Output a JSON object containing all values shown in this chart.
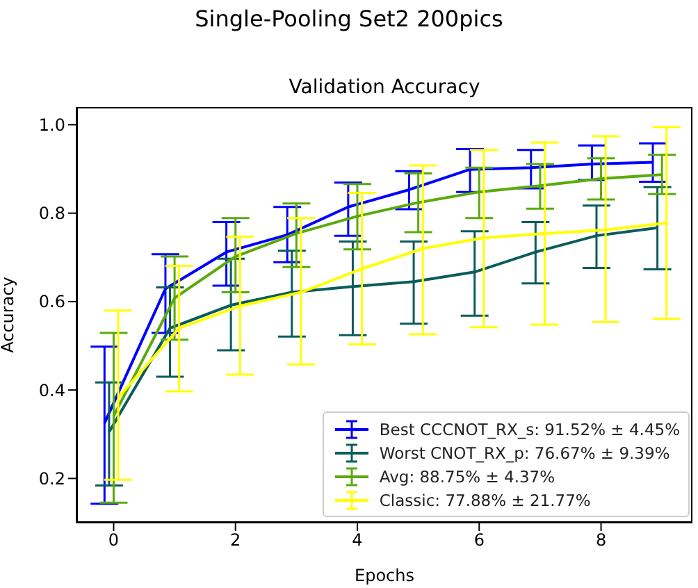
{
  "chart_data": {
    "type": "line",
    "title": "Single-Pooling Set2 200pics",
    "subtitle": "Validation Accuracy",
    "xlabel": "Epochs",
    "ylabel": "Accuracy",
    "xlim": [
      -0.61,
      9.5
    ],
    "xticks": [
      0,
      2,
      4,
      6,
      8
    ],
    "ylim": [
      0.1,
      1.04
    ],
    "yticks": [
      {
        "value": 0.2,
        "label": "0.2"
      },
      {
        "value": 0.4,
        "label": "0.4"
      },
      {
        "value": 0.6,
        "label": "0.6"
      },
      {
        "value": 0.8,
        "label": "0.8"
      },
      {
        "value": 1,
        "label": "1.0"
      }
    ],
    "grid": false,
    "legend": "bottom right",
    "marker": "none",
    "line_style": "solid",
    "series": [
      {
        "name": "Best CCCNOT_RX_s: 91.52% ± 4.45%",
        "color": "#0000ff",
        "x": [
          -0.15,
          0.85,
          1.85,
          2.85,
          3.85,
          4.85,
          5.85,
          6.85,
          7.85,
          8.85
        ],
        "values": [
          0.325,
          0.629,
          0.712,
          0.751,
          0.814,
          0.853,
          0.899,
          0.903,
          0.911,
          0.915
        ],
        "errors": [
          [
            0.143,
            0.498
          ],
          [
            0.529,
            0.707
          ],
          [
            0.636,
            0.78
          ],
          [
            0.689,
            0.814
          ],
          [
            0.749,
            0.869
          ],
          [
            0.809,
            0.895
          ],
          [
            0.848,
            0.945
          ],
          [
            0.856,
            0.943
          ],
          [
            0.875,
            0.953
          ],
          [
            0.871,
            0.958
          ]
        ]
      },
      {
        "name": "Worst CNOT_RX_p: 76.67% ± 9.39%",
        "color": "#0b5c5c",
        "x": [
          -0.075,
          0.925,
          1.925,
          2.925,
          3.925,
          4.925,
          5.925,
          6.925,
          7.925,
          8.925
        ],
        "values": [
          0.305,
          0.54,
          0.592,
          0.621,
          0.634,
          0.645,
          0.667,
          0.712,
          0.749,
          0.767
        ],
        "errors": [
          [
            0.184,
            0.417
          ],
          [
            0.43,
            0.632
          ],
          [
            0.49,
            0.697
          ],
          [
            0.521,
            0.715
          ],
          [
            0.524,
            0.736
          ],
          [
            0.55,
            0.736
          ],
          [
            0.568,
            0.759
          ],
          [
            0.641,
            0.78
          ],
          [
            0.676,
            0.817
          ],
          [
            0.673,
            0.859
          ]
        ]
      },
      {
        "name": "Avg: 88.75% ± 4.37%",
        "color": "#5aaa0a",
        "x": [
          0,
          1,
          2,
          3,
          4,
          5,
          6,
          7,
          8,
          9
        ],
        "values": [
          0.341,
          0.608,
          0.702,
          0.754,
          0.793,
          0.824,
          0.848,
          0.862,
          0.878,
          0.887
        ],
        "errors": [
          [
            0.145,
            0.529
          ],
          [
            0.514,
            0.702
          ],
          [
            0.621,
            0.789
          ],
          [
            0.678,
            0.822
          ],
          [
            0.718,
            0.866
          ],
          [
            0.757,
            0.89
          ],
          [
            0.789,
            0.903
          ],
          [
            0.81,
            0.911
          ],
          [
            0.831,
            0.924
          ],
          [
            0.843,
            0.932
          ]
        ]
      },
      {
        "name": "Classic: 77.88% ± 21.77%",
        "color": "#ffff00",
        "x": [
          0.075,
          1.075,
          2.075,
          3.075,
          4.075,
          5.075,
          6.075,
          7.075,
          8.075,
          9.075
        ],
        "values": [
          0.383,
          0.54,
          0.59,
          0.621,
          0.674,
          0.72,
          0.744,
          0.754,
          0.762,
          0.778
        ],
        "errors": [
          [
            0.197,
            0.58
          ],
          [
            0.397,
            0.681
          ],
          [
            0.435,
            0.747
          ],
          [
            0.458,
            0.789
          ],
          [
            0.503,
            0.846
          ],
          [
            0.526,
            0.908
          ],
          [
            0.542,
            0.943
          ],
          [
            0.548,
            0.96
          ],
          [
            0.554,
            0.974
          ],
          [
            0.561,
            0.995
          ]
        ]
      }
    ]
  }
}
